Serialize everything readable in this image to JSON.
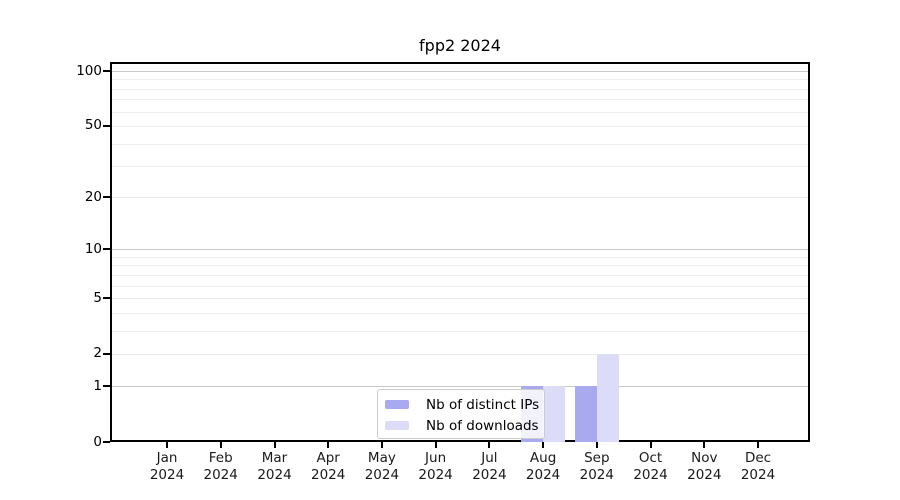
{
  "chart_data": {
    "type": "bar",
    "title": "fpp2 2024",
    "categories": [
      "Jan 2024",
      "Feb 2024",
      "Mar 2024",
      "Apr 2024",
      "May 2024",
      "Jun 2024",
      "Jul 2024",
      "Aug 2024",
      "Sep 2024",
      "Oct 2024",
      "Nov 2024",
      "Dec 2024"
    ],
    "series": [
      {
        "name": "Nb of distinct IPs",
        "color": "#a9a9f0",
        "values": [
          0,
          0,
          0,
          0,
          0,
          0,
          0,
          1,
          1,
          0,
          0,
          0
        ]
      },
      {
        "name": "Nb of downloads",
        "color": "#dcdcf8",
        "values": [
          0,
          0,
          0,
          0,
          0,
          0,
          0,
          1,
          2,
          0,
          0,
          0
        ]
      }
    ],
    "y_axis": {
      "scale": "log1p",
      "ticks": [
        0,
        1,
        2,
        5,
        10,
        20,
        50,
        100
      ],
      "major_gridlines": [
        1,
        10,
        100
      ],
      "minor_gridlines": [
        2,
        3,
        4,
        5,
        6,
        7,
        8,
        9,
        20,
        30,
        40,
        50,
        60,
        70,
        80,
        90
      ],
      "range_top": 112
    },
    "xlabel": "",
    "ylabel": "",
    "grid": "horizontal",
    "legend_position": "lower center inside",
    "colors": {
      "major_grid": "#c9c9c9",
      "minor_grid": "#ededed",
      "spine": "#000000",
      "background": "#ffffff"
    }
  }
}
